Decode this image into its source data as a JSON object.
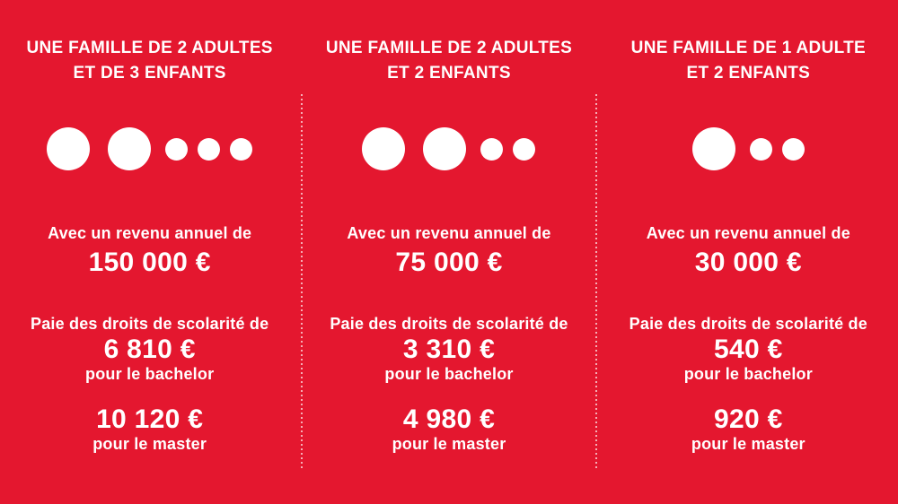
{
  "theme": {
    "background_color": "#e4172f",
    "text_color": "#ffffff",
    "divider_color": "rgba(255,255,255,0.65)"
  },
  "columns": [
    {
      "title_line1": "UNE FAMILLE DE 2 ADULTES",
      "title_line2": "ET DE 3 ENFANTS",
      "adults": 2,
      "children": 3,
      "income_label": "Avec un revenu annuel de",
      "income_value": "150 000 €",
      "tuition_label": "Paie des droits de scolarité de",
      "bachelor_value": "6 810 €",
      "bachelor_label": "pour le bachelor",
      "master_value": "10 120 €",
      "master_label": "pour le master"
    },
    {
      "title_line1": "UNE FAMILLE DE 2 ADULTES",
      "title_line2": "ET 2 ENFANTS",
      "adults": 2,
      "children": 2,
      "income_label": "Avec un revenu annuel de",
      "income_value": "75 000 €",
      "tuition_label": "Paie des droits de scolarité de",
      "bachelor_value": "3 310 €",
      "bachelor_label": "pour le bachelor",
      "master_value": "4 980 €",
      "master_label": "pour le master"
    },
    {
      "title_line1": "UNE FAMILLE DE 1 ADULTE",
      "title_line2": "ET 2 ENFANTS",
      "adults": 1,
      "children": 2,
      "income_label": "Avec un revenu annuel de",
      "income_value": "30 000 €",
      "tuition_label": "Paie des droits de scolarité de",
      "bachelor_value": "540 €",
      "bachelor_label": "pour le bachelor",
      "master_value": "920 €",
      "master_label": "pour le master"
    }
  ]
}
